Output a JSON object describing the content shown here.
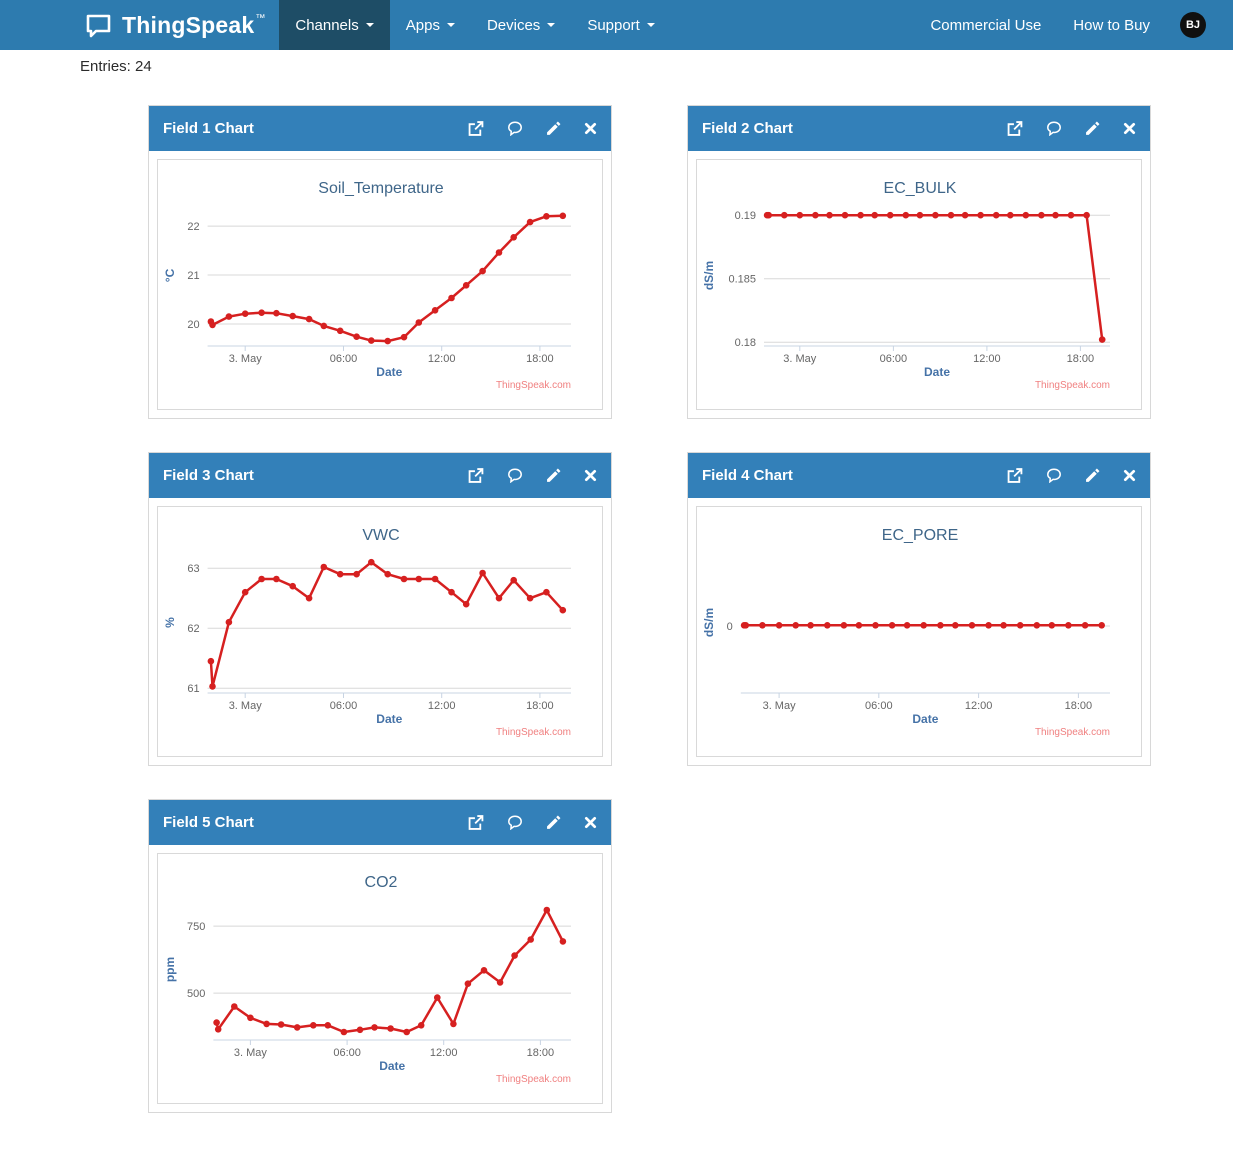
{
  "navbar": {
    "brand": "ThingSpeak",
    "brand_tm": "™",
    "items": [
      {
        "label": "Channels",
        "active": true
      },
      {
        "label": "Apps",
        "active": false
      },
      {
        "label": "Devices",
        "active": false
      },
      {
        "label": "Support",
        "active": false
      }
    ],
    "links": [
      "Commercial Use",
      "How to Buy"
    ],
    "avatar_initials": "BJ"
  },
  "page": {
    "entries_label": "Entries: 24"
  },
  "icons": {
    "logo": "speech-bubble-icon",
    "nav_caret": "caret-down-icon",
    "panel": [
      "external-link-icon",
      "comment-icon",
      "edit-pencil-icon",
      "close-icon"
    ]
  },
  "colors": {
    "navbar_bg": "#2D7BAF",
    "navbar_active_bg": "#1E4D66",
    "panel_header_bg": "#3380B9",
    "line": "#D62020",
    "title": "#3F6689",
    "axis_title": "#4572A7",
    "tick_label": "#666666",
    "gridline": "#D8D8D8",
    "axis_line": "#C8D4E3",
    "credits": "#F08080"
  },
  "chart_data": [
    {
      "panel_title": "Field 1 Chart",
      "type": "line",
      "title": "Soil_Temperature",
      "xlabel": "Date",
      "ylabel": "°C",
      "credits": "ThingSpeak.com",
      "x_hours": [
        -2.1,
        -2.0,
        -1.0,
        0.0,
        1.0,
        1.9,
        2.9,
        3.9,
        4.8,
        5.8,
        6.8,
        7.7,
        8.7,
        9.7,
        10.6,
        11.6,
        12.6,
        13.5,
        14.5,
        15.5,
        16.4,
        17.4,
        18.4,
        19.4
      ],
      "values": [
        20.05,
        19.98,
        20.15,
        20.21,
        20.23,
        20.22,
        20.16,
        20.1,
        19.96,
        19.86,
        19.74,
        19.66,
        19.65,
        19.73,
        20.03,
        20.28,
        20.53,
        20.79,
        21.08,
        21.46,
        21.77,
        22.08,
        22.2,
        22.21
      ],
      "xlim": [
        -2.3,
        19.9
      ],
      "ylim": [
        19.55,
        22.43
      ],
      "xticks": [
        {
          "v": 0,
          "label": "3. May"
        },
        {
          "v": 6,
          "label": "06:00"
        },
        {
          "v": 12,
          "label": "12:00"
        },
        {
          "v": 18,
          "label": "18:00"
        }
      ],
      "yticks": [
        {
          "v": 20,
          "label": "20"
        },
        {
          "v": 21,
          "label": "21"
        },
        {
          "v": 22,
          "label": "22"
        }
      ]
    },
    {
      "panel_title": "Field 2 Chart",
      "type": "line",
      "title": "EC_BULK",
      "xlabel": "Date",
      "ylabel": "dS/m",
      "credits": "ThingSpeak.com",
      "x_hours": [
        -2.1,
        -2.0,
        -1.0,
        0.0,
        1.0,
        1.9,
        2.9,
        3.9,
        4.8,
        5.8,
        6.8,
        7.7,
        8.7,
        9.7,
        10.6,
        11.6,
        12.6,
        13.5,
        14.5,
        15.5,
        16.4,
        17.4,
        18.4,
        19.4
      ],
      "values": [
        0.19,
        0.19,
        0.19,
        0.19,
        0.19,
        0.19,
        0.19,
        0.19,
        0.19,
        0.19,
        0.19,
        0.19,
        0.19,
        0.19,
        0.19,
        0.19,
        0.19,
        0.19,
        0.19,
        0.19,
        0.19,
        0.19,
        0.19,
        0.1802
      ],
      "xlim": [
        -2.3,
        19.9
      ],
      "ylim": [
        0.1797,
        0.1908
      ],
      "xticks": [
        {
          "v": 0,
          "label": "3. May"
        },
        {
          "v": 6,
          "label": "06:00"
        },
        {
          "v": 12,
          "label": "12:00"
        },
        {
          "v": 18,
          "label": "18:00"
        }
      ],
      "yticks": [
        {
          "v": 0.18,
          "label": "0.18"
        },
        {
          "v": 0.185,
          "label": "0.185"
        },
        {
          "v": 0.19,
          "label": "0.19"
        }
      ]
    },
    {
      "panel_title": "Field 3 Chart",
      "type": "line",
      "title": "VWC",
      "xlabel": "Date",
      "ylabel": "%",
      "credits": "ThingSpeak.com",
      "x_hours": [
        -2.1,
        -2.0,
        -1.0,
        0.0,
        1.0,
        1.9,
        2.9,
        3.9,
        4.8,
        5.8,
        6.8,
        7.7,
        8.7,
        9.7,
        10.6,
        11.6,
        12.6,
        13.5,
        14.5,
        15.5,
        16.4,
        17.4,
        18.4,
        19.4
      ],
      "values": [
        61.45,
        61.03,
        62.1,
        62.6,
        62.82,
        62.82,
        62.7,
        62.5,
        63.02,
        62.9,
        62.9,
        63.1,
        62.9,
        62.82,
        62.82,
        62.82,
        62.6,
        62.4,
        62.92,
        62.5,
        62.8,
        62.5,
        62.6,
        62.3
      ],
      "xlim": [
        -2.3,
        19.9
      ],
      "ylim": [
        60.92,
        63.27
      ],
      "xticks": [
        {
          "v": 0,
          "label": "3. May"
        },
        {
          "v": 6,
          "label": "06:00"
        },
        {
          "v": 12,
          "label": "12:00"
        },
        {
          "v": 18,
          "label": "18:00"
        }
      ],
      "yticks": [
        {
          "v": 61,
          "label": "61"
        },
        {
          "v": 62,
          "label": "62"
        },
        {
          "v": 63,
          "label": "63"
        }
      ]
    },
    {
      "panel_title": "Field 4 Chart",
      "type": "line",
      "title": "EC_PORE",
      "xlabel": "Date",
      "ylabel": "dS/m",
      "credits": "ThingSpeak.com",
      "x_hours": [
        -2.1,
        -2.0,
        -1.0,
        0.0,
        1.0,
        1.9,
        2.9,
        3.9,
        4.8,
        5.8,
        6.8,
        7.7,
        8.7,
        9.7,
        10.6,
        11.6,
        12.6,
        13.5,
        14.5,
        15.5,
        16.4,
        17.4,
        18.4,
        19.4
      ],
      "values": [
        0.01,
        0.01,
        0.01,
        0.01,
        0.01,
        0.01,
        0.01,
        0.01,
        0.01,
        0.01,
        0.01,
        0.01,
        0.01,
        0.01,
        0.01,
        0.01,
        0.01,
        0.01,
        0.01,
        0.01,
        0.01,
        0.01,
        0.01,
        0.01
      ],
      "xlim": [
        -2.3,
        19.9
      ],
      "ylim": [
        -0.95,
        1.05
      ],
      "xticks": [
        {
          "v": 0,
          "label": "3. May"
        },
        {
          "v": 6,
          "label": "06:00"
        },
        {
          "v": 12,
          "label": "12:00"
        },
        {
          "v": 18,
          "label": "18:00"
        }
      ],
      "yticks": [
        {
          "v": 0,
          "label": "0"
        }
      ]
    },
    {
      "panel_title": "Field 5 Chart",
      "type": "line",
      "title": "CO2",
      "xlabel": "Date",
      "ylabel": "ppm",
      "credits": "ThingSpeak.com",
      "x_hours": [
        -2.1,
        -2.0,
        -1.0,
        0.0,
        1.0,
        1.9,
        2.9,
        3.9,
        4.8,
        5.8,
        6.8,
        7.7,
        8.7,
        9.7,
        10.6,
        11.6,
        12.6,
        13.5,
        14.5,
        15.5,
        16.4,
        17.4,
        18.4,
        19.4
      ],
      "values": [
        390,
        365,
        450,
        408,
        385,
        383,
        372,
        380,
        380,
        355,
        363,
        372,
        368,
        355,
        380,
        483,
        385,
        535,
        585,
        540,
        640,
        700,
        810,
        693
      ],
      "xlim": [
        -2.3,
        19.9
      ],
      "ylim": [
        325,
        851
      ],
      "xticks": [
        {
          "v": 0,
          "label": "3. May"
        },
        {
          "v": 6,
          "label": "06:00"
        },
        {
          "v": 12,
          "label": "12:00"
        },
        {
          "v": 18,
          "label": "18:00"
        }
      ],
      "yticks": [
        {
          "v": 500,
          "label": "500"
        },
        {
          "v": 750,
          "label": "750"
        }
      ]
    }
  ]
}
